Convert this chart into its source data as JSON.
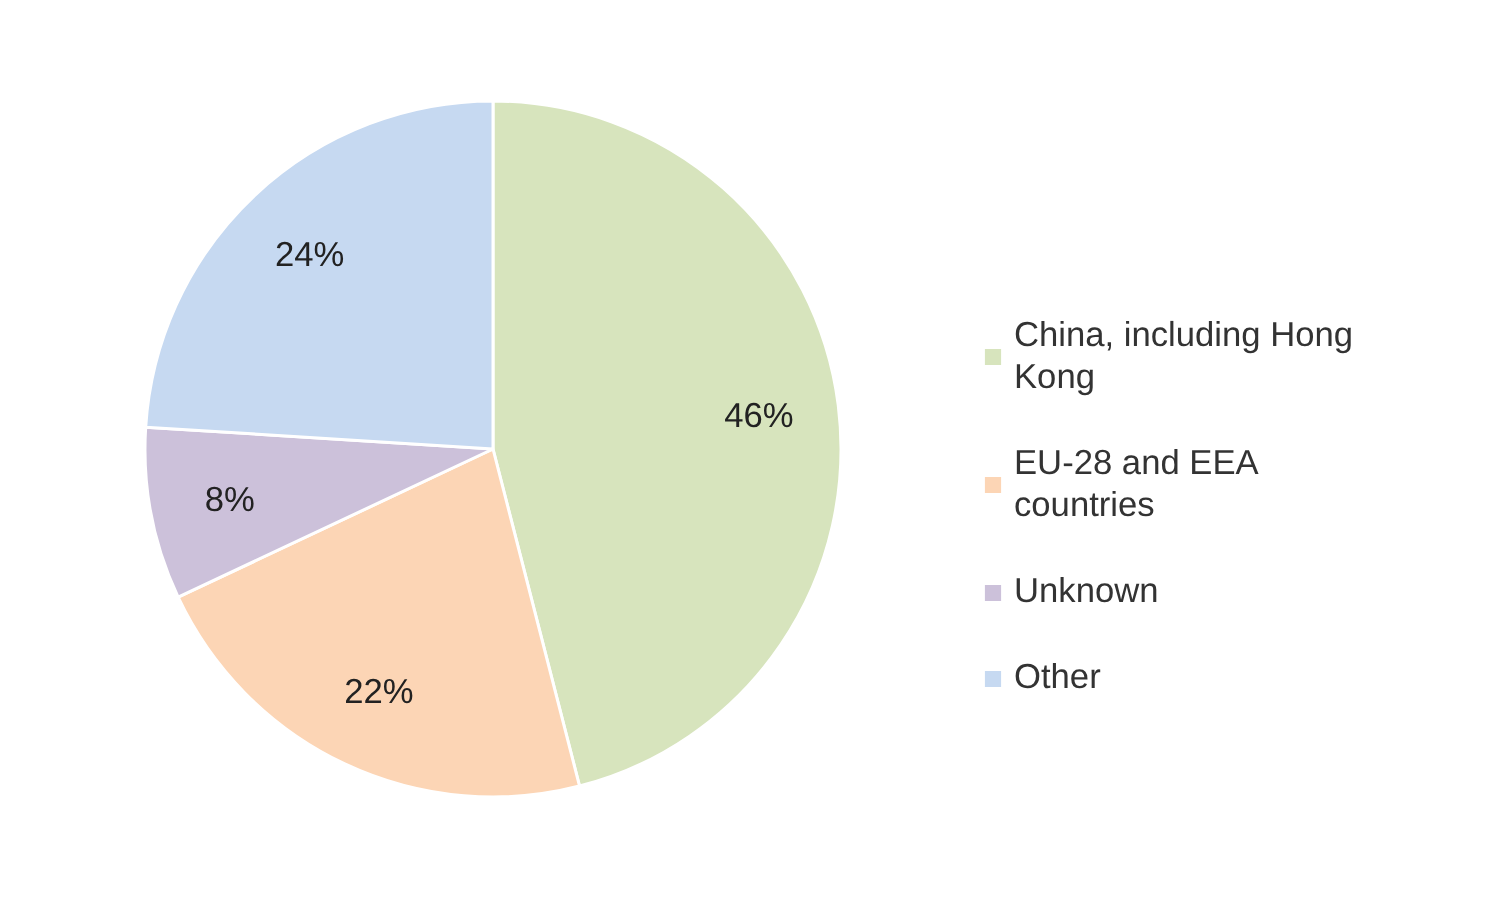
{
  "chart_data": {
    "type": "pie",
    "categories": [
      "China, including Hong Kong",
      "EU-28 and EEA countries",
      "Unknown",
      "Other"
    ],
    "values": [
      46,
      22,
      8,
      24
    ],
    "colors": [
      "#d7e4bd",
      "#fcd5b5",
      "#ccc1da",
      "#c6d9f1"
    ],
    "value_labels": [
      "46%",
      "22%",
      "8%",
      "24%"
    ],
    "legend": "right"
  }
}
